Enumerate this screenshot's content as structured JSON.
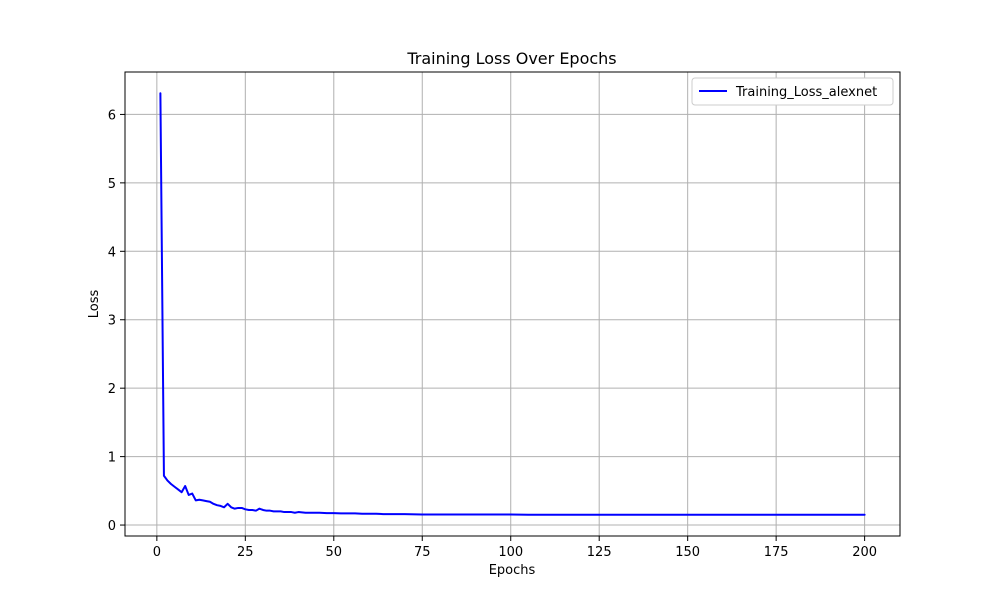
{
  "colors": {
    "series": "#0000ff",
    "grid": "#b0b0b0",
    "axes": "#000000",
    "legend_border": "#cccccc"
  },
  "chart_data": {
    "type": "line",
    "title": "Training Loss Over Epochs",
    "xlabel": "Epochs",
    "ylabel": "Loss",
    "xlim": [
      -9,
      210
    ],
    "ylim": [
      -0.16,
      6.62
    ],
    "xticks": [
      0,
      25,
      50,
      75,
      100,
      125,
      150,
      175,
      200
    ],
    "yticks": [
      0,
      1,
      2,
      3,
      4,
      5,
      6
    ],
    "grid": true,
    "legend_position": "top-right",
    "series": [
      {
        "name": "Training_Loss_alexnet",
        "color": "#0000ff",
        "x": [
          1,
          2,
          3,
          4,
          5,
          6,
          7,
          8,
          9,
          10,
          11,
          12,
          13,
          14,
          15,
          16,
          17,
          18,
          19,
          20,
          21,
          22,
          23,
          24,
          25,
          26,
          27,
          28,
          29,
          30,
          31,
          32,
          33,
          34,
          35,
          36,
          37,
          38,
          39,
          40,
          42,
          44,
          46,
          48,
          50,
          52,
          54,
          56,
          58,
          60,
          62,
          64,
          66,
          68,
          70,
          75,
          80,
          85,
          90,
          95,
          100,
          105,
          110,
          115,
          120,
          125,
          130,
          135,
          140,
          145,
          150,
          155,
          160,
          165,
          170,
          175,
          180,
          185,
          190,
          195,
          200
        ],
        "y": [
          6.31,
          0.72,
          0.65,
          0.6,
          0.56,
          0.52,
          0.48,
          0.57,
          0.44,
          0.46,
          0.36,
          0.37,
          0.36,
          0.35,
          0.34,
          0.31,
          0.29,
          0.28,
          0.26,
          0.31,
          0.26,
          0.24,
          0.25,
          0.25,
          0.23,
          0.22,
          0.22,
          0.21,
          0.24,
          0.22,
          0.21,
          0.21,
          0.2,
          0.2,
          0.2,
          0.19,
          0.19,
          0.19,
          0.18,
          0.19,
          0.18,
          0.18,
          0.18,
          0.175,
          0.175,
          0.17,
          0.17,
          0.17,
          0.165,
          0.165,
          0.165,
          0.16,
          0.16,
          0.16,
          0.16,
          0.155,
          0.155,
          0.155,
          0.155,
          0.155,
          0.155,
          0.15,
          0.15,
          0.15,
          0.15,
          0.15,
          0.15,
          0.15,
          0.15,
          0.15,
          0.15,
          0.15,
          0.15,
          0.15,
          0.15,
          0.15,
          0.15,
          0.15,
          0.15,
          0.15,
          0.15
        ]
      }
    ]
  }
}
